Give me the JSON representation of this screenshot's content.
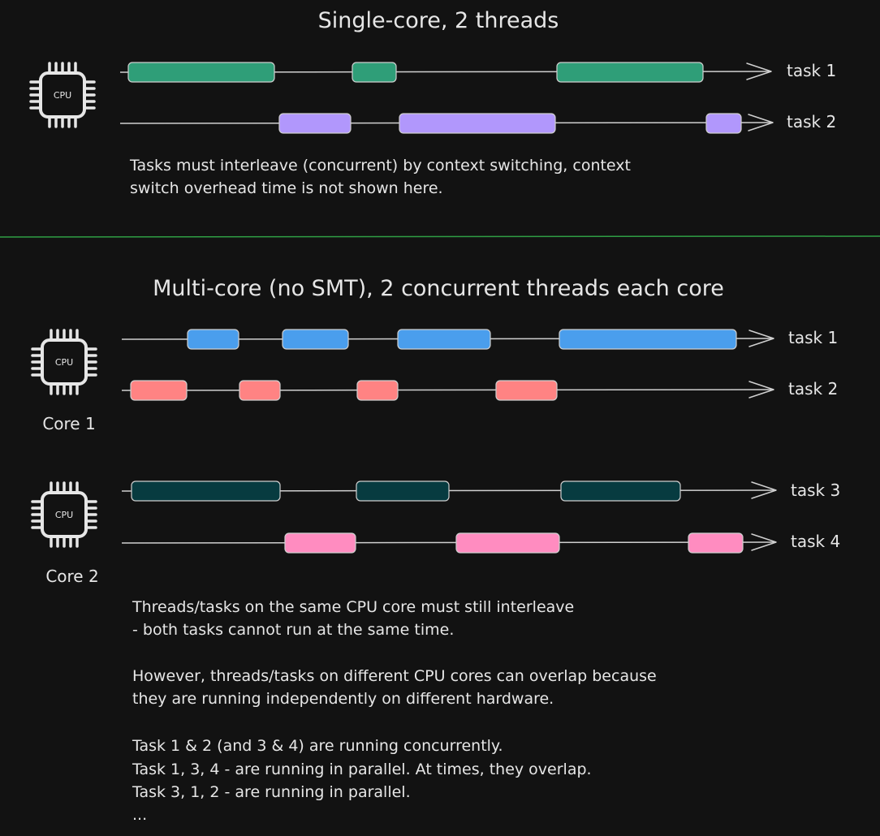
{
  "diagram": {
    "single_core": {
      "title": "Single-core, 2 threads",
      "cpu_label": "CPU",
      "tasks": [
        {
          "label": "task 1",
          "color": "#2f9e78",
          "segments": [
            [
              158,
              338
            ],
            [
              434,
              488
            ],
            [
              686,
              866
            ]
          ]
        },
        {
          "label": "task 2",
          "color": "#b197fc",
          "segments": [
            [
              344,
              432
            ],
            [
              492,
              684
            ],
            [
              870,
              913
            ]
          ]
        }
      ],
      "note_lines": [
        "Tasks must interleave (concurrent) by context switching, context",
        "switch overhead time is not shown here."
      ]
    },
    "divider_color": "#2f9e44",
    "multi_core": {
      "title": "Multi-core (no SMT), 2 concurrent threads each core",
      "cores": [
        {
          "name": "Core 1",
          "cpu_label": "CPU",
          "tasks": [
            {
              "label": "task 1",
              "color": "#4a9eed",
              "segments": [
                [
                  231,
                  294
                ],
                [
                  348,
                  429
                ],
                [
                  490,
                  604
                ],
                [
                  689,
                  907
                ]
              ]
            },
            {
              "label": "task 2",
              "color": "#ff8383",
              "segments": [
                [
                  161,
                  230
                ],
                [
                  295,
                  345
                ],
                [
                  440,
                  490
                ],
                [
                  611,
                  686
                ]
              ]
            }
          ]
        },
        {
          "name": "Core 2",
          "cpu_label": "CPU",
          "tasks": [
            {
              "label": "task 3",
              "color": "#073b40",
              "segments": [
                [
                  162,
                  345
                ],
                [
                  439,
                  553
                ],
                [
                  691,
                  838
                ]
              ]
            },
            {
              "label": "task 4",
              "color": "#ff8cc0",
              "segments": [
                [
                  351,
                  438
                ],
                [
                  562,
                  689
                ],
                [
                  848,
                  915
                ]
              ]
            }
          ]
        }
      ],
      "note_lines": [
        "Threads/tasks on the same CPU core must still interleave",
        "- both tasks cannot run at the same time.",
        "",
        "However, threads/tasks on different CPU cores can overlap because",
        "they are running independently on different hardware.",
        "",
        "Task 1 & 2 (and 3 & 4) are running concurrently.",
        "Task 1, 3, 4 - are running in parallel. At times, they overlap.",
        "Task 3, 1, 2 - are running in parallel.",
        "..."
      ]
    }
  }
}
